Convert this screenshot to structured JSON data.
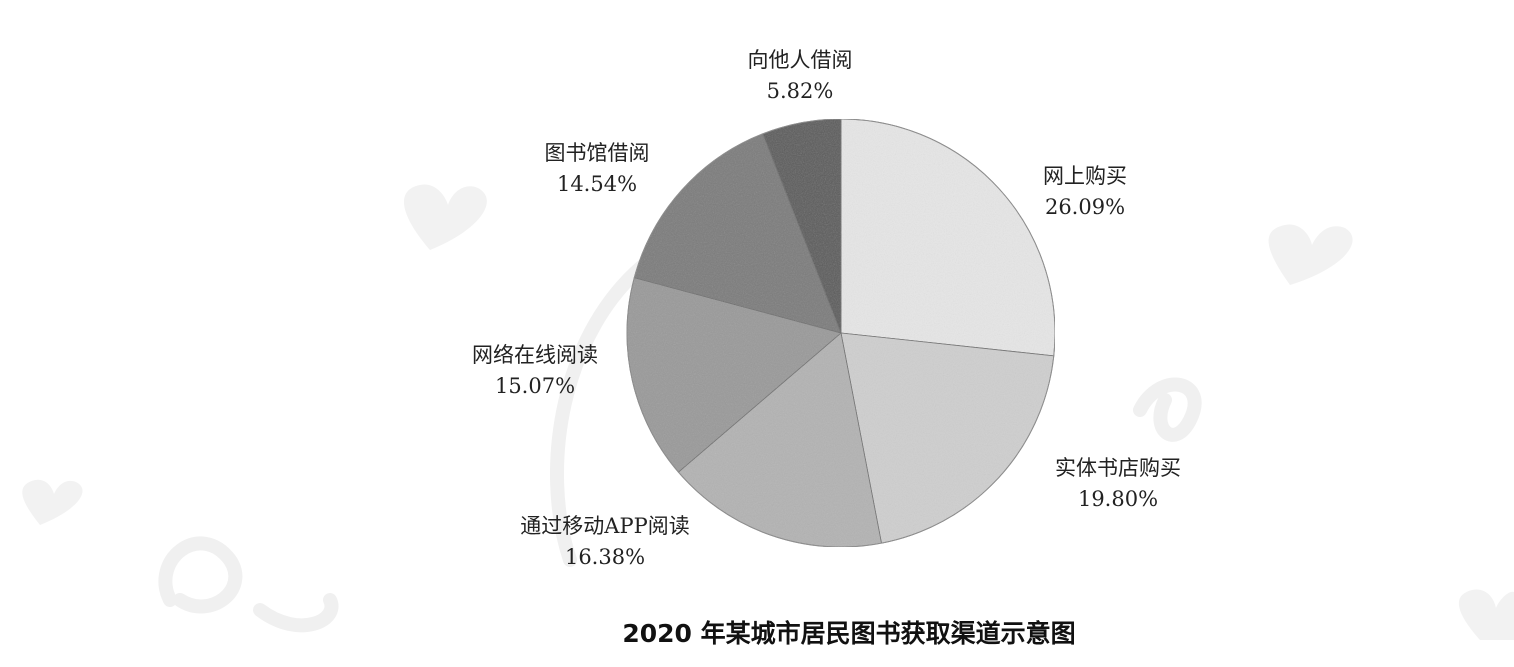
{
  "chart_data": {
    "type": "pie",
    "title": "2020 年某城市居民图书获取渠道示意图",
    "slices": [
      {
        "label": "网上购买",
        "value": 26.09,
        "value_label": "26.09%",
        "color": "#e6e6e6"
      },
      {
        "label": "实体书店购买",
        "value": 19.8,
        "value_label": "19.80%",
        "color": "#cfcfcf"
      },
      {
        "label": "通过移动APP阅读",
        "value": 16.38,
        "value_label": "16.38%",
        "color": "#b3b3b3"
      },
      {
        "label": "网络在线阅读",
        "value": 15.07,
        "value_label": "15.07%",
        "color": "#9a9a9a"
      },
      {
        "label": "图书馆借阅",
        "value": 14.54,
        "value_label": "14.54%",
        "color": "#7c7c7c"
      },
      {
        "label": "向他人借阅",
        "value": 5.82,
        "value_label": "5.82%",
        "color": "#5c5c5c"
      }
    ],
    "start_angle_deg": 0,
    "direction": "clockwise",
    "legend": "none"
  }
}
